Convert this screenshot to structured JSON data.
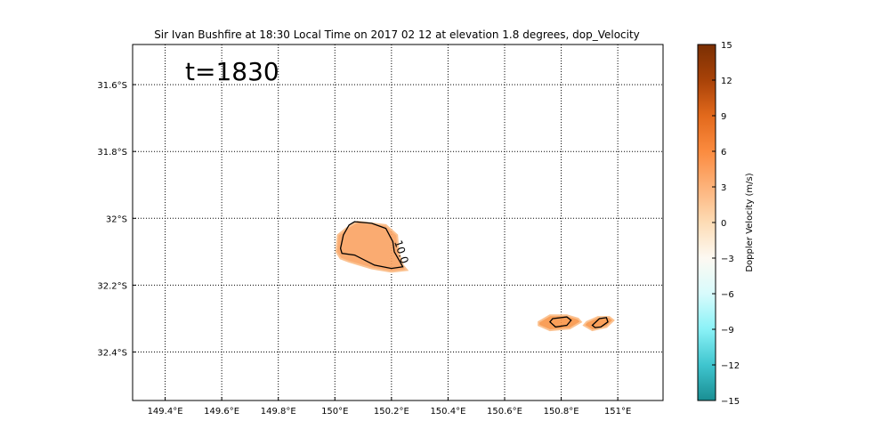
{
  "chart_data": {
    "type": "heatmap",
    "title": "Sir Ivan Bushfire at 18:30 Local Time on 2017 02 12 at elevation 1.8 degrees, dop_Velocity",
    "annotation": "t=1830",
    "xlabel": "",
    "ylabel": "",
    "xlim": [
      149.285,
      151.16
    ],
    "ylim": [
      -32.545,
      -31.48
    ],
    "x_ticks": [
      149.4,
      149.6,
      149.8,
      150.0,
      150.2,
      150.4,
      150.6,
      150.8,
      151.0
    ],
    "x_tick_labels": [
      "149.4°E",
      "149.6°E",
      "149.8°E",
      "150°E",
      "150.2°E",
      "150.4°E",
      "150.6°E",
      "150.8°E",
      "151°E"
    ],
    "y_ticks": [
      -31.6,
      -31.8,
      -32.0,
      -32.2,
      -32.4
    ],
    "y_tick_labels": [
      "31.6°S",
      "31.8°S",
      "32°S",
      "32.2°S",
      "32.4°S"
    ],
    "grid": true,
    "grid_style": "dotted",
    "colorbar": {
      "label": "Doppler Velocity (m/s)",
      "range": [
        -15,
        15
      ],
      "ticks": [
        15,
        12,
        9,
        6,
        3,
        0,
        -3,
        -6,
        -9,
        -12,
        -15
      ],
      "tick_labels": [
        "15",
        "12",
        "9",
        "6",
        "3",
        "0",
        "−3",
        "−6",
        "−9",
        "−12",
        "−15"
      ],
      "colors": [
        "#1a8e93",
        "#3fc5cf",
        "#8af2f7",
        "#d8fbfc",
        "#fdf9f2",
        "#fddcb5",
        "#fdb27a",
        "#fb8b3f",
        "#e2691c",
        "#a84208",
        "#7a2f03"
      ]
    },
    "regions": [
      {
        "name": "",
        "value_ms": 7,
        "color": "#f9a262",
        "outline": [
          [
            150.08,
            -32.01
          ],
          [
            150.18,
            -32.02
          ],
          [
            150.22,
            -32.05
          ],
          [
            150.225,
            -32.1
          ],
          [
            150.24,
            -32.14
          ],
          [
            150.255,
            -32.155
          ],
          [
            150.2,
            -32.16
          ],
          [
            150.13,
            -32.15
          ],
          [
            150.05,
            -32.13
          ],
          [
            150.02,
            -32.12
          ],
          [
            150.005,
            -32.1
          ],
          [
            150.01,
            -32.05
          ],
          [
            150.04,
            -32.03
          ]
        ],
        "contour": [
          [
            150.07,
            -32.01
          ],
          [
            150.13,
            -32.015
          ],
          [
            150.18,
            -32.03
          ],
          [
            150.205,
            -32.07
          ],
          [
            150.21,
            -32.1
          ],
          [
            150.23,
            -32.13
          ],
          [
            150.24,
            -32.145
          ],
          [
            150.2,
            -32.15
          ],
          [
            150.14,
            -32.14
          ],
          [
            150.07,
            -32.11
          ],
          [
            150.025,
            -32.105
          ],
          [
            150.02,
            -32.09
          ],
          [
            150.03,
            -32.05
          ],
          [
            150.05,
            -32.02
          ]
        ],
        "contour_label": "10.0"
      },
      {
        "name": "",
        "value_ms": 8,
        "color": "#f89547",
        "outline": [
          [
            150.72,
            -32.31
          ],
          [
            150.76,
            -32.29
          ],
          [
            150.82,
            -32.29
          ],
          [
            150.86,
            -32.3
          ],
          [
            150.87,
            -32.31
          ],
          [
            150.83,
            -32.33
          ],
          [
            150.76,
            -32.335
          ],
          [
            150.72,
            -32.32
          ]
        ],
        "contour": [
          [
            150.77,
            -32.3
          ],
          [
            150.82,
            -32.295
          ],
          [
            150.835,
            -32.305
          ],
          [
            150.82,
            -32.32
          ],
          [
            150.78,
            -32.325
          ],
          [
            150.76,
            -32.31
          ]
        ],
        "contour_label": ""
      },
      {
        "name": "",
        "value_ms": 8,
        "color": "#f89547",
        "outline": [
          [
            150.89,
            -32.31
          ],
          [
            150.93,
            -32.295
          ],
          [
            150.97,
            -32.295
          ],
          [
            150.985,
            -32.305
          ],
          [
            150.96,
            -32.325
          ],
          [
            150.91,
            -32.335
          ],
          [
            150.88,
            -32.32
          ]
        ],
        "contour": [
          [
            150.91,
            -32.32
          ],
          [
            150.935,
            -32.3
          ],
          [
            150.96,
            -32.297
          ],
          [
            150.965,
            -32.31
          ],
          [
            150.94,
            -32.325
          ],
          [
            150.92,
            -32.327
          ]
        ],
        "contour_label": ""
      }
    ]
  }
}
